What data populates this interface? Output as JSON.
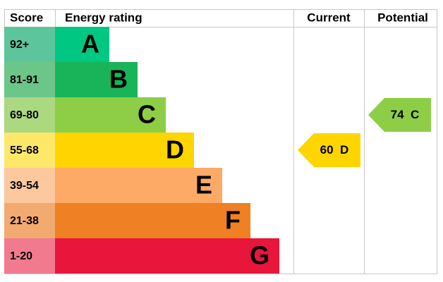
{
  "header": {
    "score": "Score",
    "rating": "Energy rating",
    "current": "Current",
    "potential": "Potential"
  },
  "bands": [
    {
      "score": "92+",
      "letter": "A",
      "color": "#00c781",
      "score_color": "#5cc59b"
    },
    {
      "score": "81-91",
      "letter": "B",
      "color": "#19b459",
      "score_color": "#6cc689"
    },
    {
      "score": "69-80",
      "letter": "C",
      "color": "#8dce46",
      "score_color": "#acd880"
    },
    {
      "score": "55-68",
      "letter": "D",
      "color": "#ffd500",
      "score_color": "#fde86a"
    },
    {
      "score": "39-54",
      "letter": "E",
      "color": "#fcaa65",
      "score_color": "#fcc89e"
    },
    {
      "score": "21-38",
      "letter": "F",
      "color": "#ef8023",
      "score_color": "#f2aa70"
    },
    {
      "score": "1-20",
      "letter": "G",
      "color": "#e9153b",
      "score_color": "#f27a8e"
    }
  ],
  "current": {
    "value": 60,
    "letter": "D"
  },
  "potential": {
    "value": 74,
    "letter": "C"
  }
}
